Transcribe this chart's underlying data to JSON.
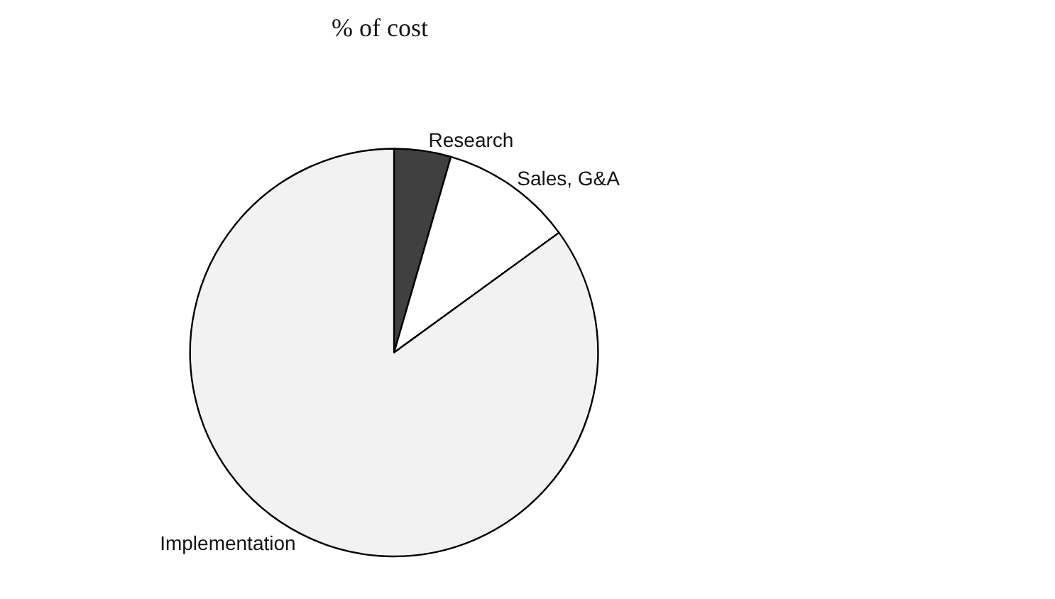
{
  "chart_data": {
    "type": "pie",
    "title": "% of cost",
    "categories": [
      "Research",
      "Sales, G&A",
      "Implementation"
    ],
    "values": [
      4.5,
      10.5,
      85
    ],
    "colors": [
      "#404040",
      "#ffffff",
      "#f2f2f2"
    ],
    "legend": false
  }
}
